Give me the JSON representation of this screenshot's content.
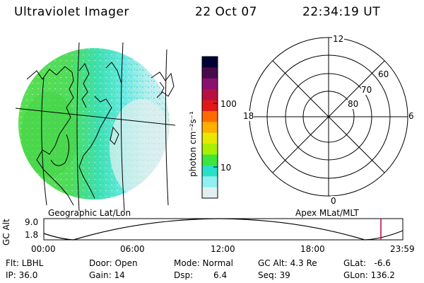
{
  "header": {
    "instrument": "Ultraviolet Imager",
    "date": "22 Oct 07",
    "time": "22:34:19 UT"
  },
  "colorbar": {
    "unit_label": "photon cm⁻²s⁻¹",
    "ticks": [
      "100",
      "10"
    ],
    "colors": [
      "#000033",
      "#4a0a4a",
      "#8a1070",
      "#b81040",
      "#e01818",
      "#ff6a00",
      "#ffb000",
      "#e8e800",
      "#a8f000",
      "#3ce63c",
      "#28e0c8",
      "#8ef0f0",
      "#e0f0f0"
    ]
  },
  "polar": {
    "mlt_labels": [
      "12",
      "18",
      "6",
      "0"
    ],
    "lat_labels": [
      "60",
      "70",
      "80"
    ]
  },
  "panel_labels": {
    "left": "Geographic Lat/Lon",
    "right": "Apex MLat/MLT"
  },
  "orbit_plot": {
    "ylabel": "GC Alt",
    "yticks": [
      "9.0",
      "1.8"
    ],
    "xticks": [
      "00:00",
      "06:00",
      "12:00",
      "18:00",
      "23:59"
    ],
    "marker_color": "#c0003c"
  },
  "info": {
    "flt": "Flt: LBHL",
    "door": "Door: Open",
    "mode": "Mode: Normal",
    "gc_alt": "GC Alt: 4.3 Re",
    "glat": "GLat:   -6.6",
    "ip": "IP: 36.0",
    "gain": "Gain: 14",
    "dsp_label": "Dsp:",
    "dsp_value": "6.4",
    "seq": "Seq: 39",
    "glon": "GLon: 136.2"
  }
}
